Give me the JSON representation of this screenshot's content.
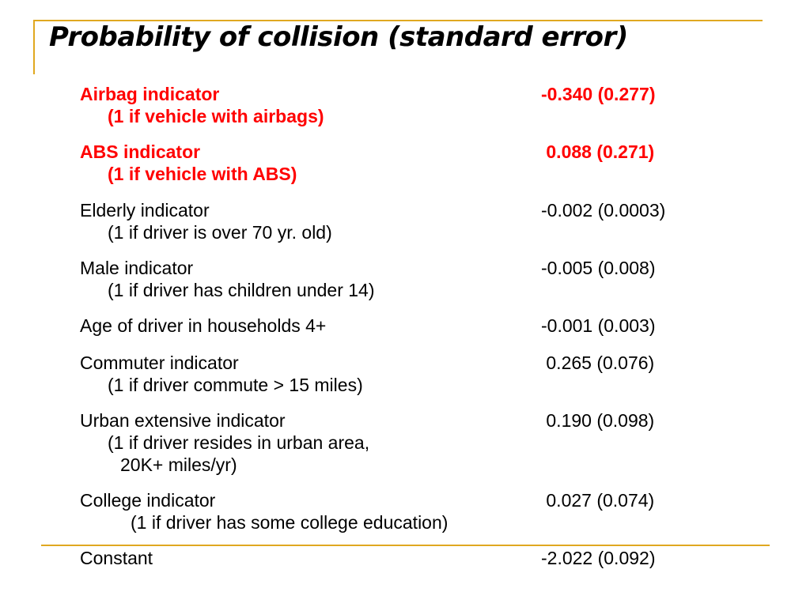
{
  "slide": {
    "title": "Probability of collision (standard error)",
    "accent_color": "#e0a820",
    "highlight_color": "#ff0000",
    "rows": [
      {
        "label": "Airbag indicator",
        "desc": "(1 if  vehicle with airbags)",
        "value": "-0.340 (0.277)",
        "highlight": true
      },
      {
        "label": "ABS indicator",
        "desc": "(1 if vehicle with ABS)",
        "value": " 0.088 (0.271)",
        "highlight": true
      },
      {
        "label": "Elderly indicator",
        "desc": "(1 if driver is over 70 yr. old)",
        "value": "-0.002 (0.0003)",
        "highlight": false
      },
      {
        "label": "Male indicator",
        "desc": "(1 if driver has children under 14)",
        "value": "-0.005 (0.008)",
        "highlight": false
      },
      {
        "label": "Age of driver in households 4+",
        "value": "-0.001 (0.003)",
        "highlight": false
      },
      {
        "label": "Commuter indicator",
        "desc": "(1 if driver commute > 15 miles)",
        "value": " 0.265 (0.076)",
        "highlight": false
      },
      {
        "label": "Urban extensive indicator",
        "desc": "(1 if driver resides in urban area,",
        "desc2": "20K+ miles/yr)",
        "value": " 0.190 (0.098)",
        "highlight": false
      },
      {
        "label": "College indicator",
        "desc": "(1 if driver has some college education)",
        "value": " 0.027 (0.074)",
        "highlight": false
      },
      {
        "label": "Constant",
        "value": "-2.022 (0.092)",
        "highlight": false
      }
    ]
  }
}
